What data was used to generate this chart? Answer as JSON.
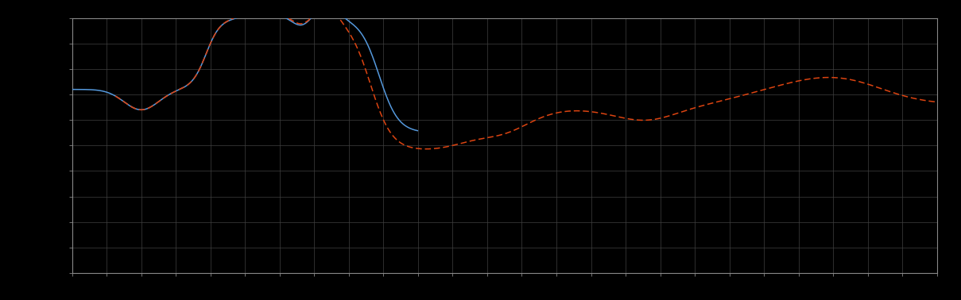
{
  "background_color": "#000000",
  "plot_bg_color": "#000000",
  "grid_color": "#404040",
  "line1_color": "#5599dd",
  "line2_color": "#dd4411",
  "figsize": [
    12.09,
    3.78
  ],
  "dpi": 100,
  "spine_color": "#888888",
  "tick_color": "#888888",
  "grid_nx": 25,
  "grid_ny": 10
}
